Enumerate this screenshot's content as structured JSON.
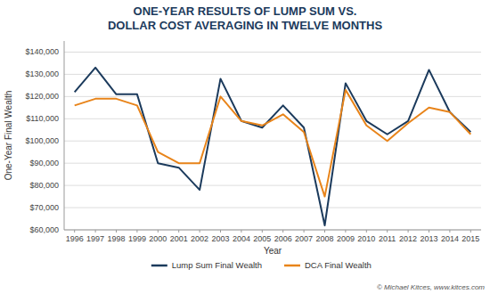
{
  "chart_data": {
    "type": "line",
    "title": "ONE-YEAR RESULTS OF LUMP SUM VS.\nDOLLAR COST AVERAGING IN TWELVE MONTHS",
    "x_label": "Year",
    "y_label": "One-Year Final Wealth",
    "x": [
      1996,
      1997,
      1998,
      1999,
      2000,
      2001,
      2002,
      2003,
      2004,
      2005,
      2006,
      2007,
      2008,
      2009,
      2010,
      2011,
      2012,
      2013,
      2014,
      2015
    ],
    "series": [
      {
        "name": "Lump Sum Final Wealth",
        "color": "#1b3a5c",
        "values": [
          122000,
          133000,
          121000,
          121000,
          90000,
          88000,
          78000,
          128000,
          109000,
          106000,
          116000,
          106000,
          62000,
          126000,
          109000,
          103000,
          109000,
          132000,
          113000,
          104000
        ]
      },
      {
        "name": "DCA Final Wealth",
        "color": "#e8841a",
        "values": [
          116000,
          119000,
          119000,
          116000,
          95000,
          90000,
          90000,
          120000,
          109000,
          107000,
          112000,
          104000,
          75000,
          123000,
          107000,
          100000,
          108000,
          115000,
          113000,
          103000
        ]
      }
    ],
    "xlim": [
      1995.5,
      2015.5
    ],
    "xticks": [
      1996,
      1997,
      1998,
      1999,
      2000,
      2001,
      2002,
      2003,
      2004,
      2005,
      2006,
      2007,
      2008,
      2009,
      2010,
      2011,
      2012,
      2013,
      2014,
      2015
    ],
    "ylim": [
      60000,
      145000
    ],
    "yticks": [
      {
        "value": 60000,
        "label": "$60,000"
      },
      {
        "value": 70000,
        "label": "$70,000"
      },
      {
        "value": 80000,
        "label": "$80,000"
      },
      {
        "value": 90000,
        "label": "$90,000"
      },
      {
        "value": 100000,
        "label": "$100,000"
      },
      {
        "value": 110000,
        "label": "$110,000"
      },
      {
        "value": 120000,
        "label": "$120,000"
      },
      {
        "value": 130000,
        "label": "$130,000"
      },
      {
        "value": 140000,
        "label": "$140,000"
      }
    ],
    "grid": true,
    "legend": "bottom",
    "annotations": [
      "© Michael Kitces, www.kitces.com"
    ]
  }
}
